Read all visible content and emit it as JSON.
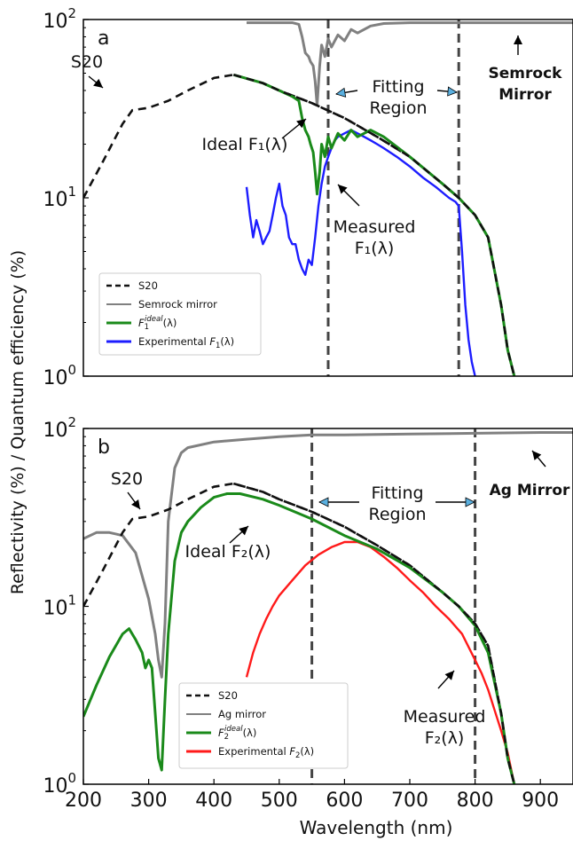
{
  "figure": {
    "ylabel": "Reflectivity (%) / Quantum efficiency (%)",
    "xlabel": "Wavelength (nm)"
  },
  "colors": {
    "s20": "#111111",
    "mirror": "#808080",
    "ideal": "#1a8a1a",
    "experimental_a": "#1d1dff",
    "experimental_b": "#ff1a1a",
    "dashed_lines": "#444444"
  },
  "chart_data": [
    {
      "type": "line",
      "panel_label": "a",
      "x_scale": "linear",
      "y_scale": "log",
      "xlim": [
        200,
        950
      ],
      "ylim": [
        1,
        100
      ],
      "x_ticks": [],
      "y_ticks": [
        {
          "value": 1,
          "base": "10",
          "exp": "0"
        },
        {
          "value": 10,
          "base": "10",
          "exp": "1"
        },
        {
          "value": 100,
          "base": "10",
          "exp": "2"
        }
      ],
      "vlines": [
        575,
        775
      ],
      "legend": {
        "position": "lower-left",
        "entries": [
          {
            "series": "S20",
            "text": "S20"
          },
          {
            "series": "Semrock mirror",
            "text": "Semrock mirror"
          },
          {
            "series": "F1 ideal",
            "text": "F",
            "sub": "1",
            "sup": "ideal",
            "tail": "(λ)"
          },
          {
            "series": "Experimental F1",
            "text": "Experimental F",
            "sub": "1",
            "tail": "(λ)"
          }
        ]
      },
      "annotations": [
        {
          "lines": [
            "S20"
          ]
        },
        {
          "lines": [
            "Semrock",
            "Mirror"
          ],
          "bold": true
        },
        {
          "lines": [
            "Fitting",
            "Region"
          ]
        },
        {
          "lines": [
            "Ideal F₁(λ)"
          ]
        },
        {
          "lines": [
            "Measured",
            "F₁(λ)"
          ]
        }
      ],
      "series": [
        {
          "name": "S20",
          "style": "dashed",
          "x": [
            200,
            230,
            260,
            275,
            300,
            330,
            360,
            400,
            430,
            475,
            500,
            550,
            600,
            650,
            700,
            750,
            775,
            800,
            820,
            840,
            850,
            860
          ],
          "y": [
            10,
            16,
            26,
            31,
            32,
            35,
            40,
            47,
            49,
            44,
            40,
            34,
            28,
            22,
            17,
            12,
            10,
            8,
            6,
            2.5,
            1.4,
            1.0
          ]
        },
        {
          "name": "Semrock mirror",
          "x": [
            450,
            480,
            520,
            530,
            535,
            540,
            545,
            548,
            552,
            555,
            558,
            562,
            565,
            570,
            575,
            580,
            590,
            600,
            610,
            620,
            640,
            660,
            700,
            800,
            900,
            950
          ],
          "y": [
            96,
            96,
            96,
            94,
            80,
            65,
            62,
            58,
            55,
            45,
            33,
            55,
            72,
            62,
            78,
            70,
            82,
            76,
            88,
            84,
            92,
            95,
            96,
            96,
            96,
            96
          ]
        },
        {
          "name": "F1 ideal",
          "x": [
            430,
            475,
            500,
            520,
            530,
            535,
            540,
            545,
            548,
            552,
            555,
            558,
            562,
            565,
            570,
            575,
            580,
            590,
            600,
            610,
            620,
            640,
            660,
            700,
            750,
            775,
            800,
            820,
            840,
            850,
            860
          ],
          "y": [
            49,
            44,
            40,
            37,
            35,
            28,
            24,
            22,
            20,
            18,
            14,
            10.5,
            14,
            20,
            17,
            22,
            19,
            23,
            21,
            24,
            22,
            24,
            22,
            17,
            12,
            10,
            8,
            6,
            2.5,
            1.4,
            1.0
          ]
        },
        {
          "name": "Experimental F1",
          "x": [
            450,
            455,
            460,
            465,
            470,
            475,
            480,
            485,
            490,
            495,
            500,
            505,
            510,
            515,
            520,
            525,
            530,
            535,
            540,
            545,
            550,
            555,
            560,
            565,
            570,
            575,
            580,
            585,
            590,
            600,
            610,
            620,
            630,
            640,
            650,
            660,
            680,
            700,
            720,
            740,
            760,
            770,
            775,
            780,
            785,
            790,
            795,
            800
          ],
          "y": [
            11.5,
            8,
            6,
            7.5,
            6.5,
            5.5,
            6,
            6.5,
            8,
            10,
            12,
            9,
            8,
            6,
            5.5,
            5.5,
            4.5,
            4,
            3.7,
            4.5,
            4.2,
            6,
            9,
            12,
            15,
            17,
            19,
            21,
            22,
            23,
            24,
            23,
            22,
            21,
            20,
            19,
            17,
            15,
            13,
            11.5,
            10,
            9.5,
            9,
            5,
            2.5,
            1.6,
            1.2,
            1.0
          ]
        }
      ]
    },
    {
      "type": "line",
      "panel_label": "b",
      "x_scale": "linear",
      "y_scale": "log",
      "xlim": [
        200,
        950
      ],
      "ylim": [
        1,
        100
      ],
      "x_ticks": [
        200,
        300,
        400,
        500,
        600,
        700,
        800,
        900
      ],
      "y_ticks": [
        {
          "value": 1,
          "base": "10",
          "exp": "0"
        },
        {
          "value": 10,
          "base": "10",
          "exp": "1"
        },
        {
          "value": 100,
          "base": "10",
          "exp": "2"
        }
      ],
      "vlines": [
        550,
        800
      ],
      "legend": {
        "position": "lower-left",
        "entries": [
          {
            "series": "S20",
            "text": "S20"
          },
          {
            "series": "Ag mirror",
            "text": "Ag mirror"
          },
          {
            "series": "F2 ideal",
            "text": "F",
            "sub": "2",
            "sup": "ideal",
            "tail": "(λ)"
          },
          {
            "series": "Experimental F2",
            "text": "Experimental F",
            "sub": "2",
            "tail": "(λ)"
          }
        ]
      },
      "annotations": [
        {
          "lines": [
            "S20"
          ]
        },
        {
          "lines": [
            "Ag Mirror"
          ],
          "bold": true
        },
        {
          "lines": [
            "Fitting",
            "Region"
          ]
        },
        {
          "lines": [
            "Ideal F₂(λ)"
          ]
        },
        {
          "lines": [
            "Measured",
            "F₂(λ)"
          ]
        }
      ],
      "series": [
        {
          "name": "S20",
          "style": "dashed",
          "x": [
            200,
            230,
            260,
            275,
            300,
            330,
            360,
            400,
            430,
            475,
            500,
            550,
            600,
            650,
            700,
            750,
            775,
            800,
            820,
            840,
            850,
            860
          ],
          "y": [
            10,
            16,
            26,
            31,
            32,
            35,
            40,
            47,
            49,
            44,
            40,
            34,
            28,
            22,
            17,
            12,
            10,
            8,
            6,
            2.5,
            1.4,
            1.0
          ]
        },
        {
          "name": "Ag mirror",
          "x": [
            200,
            220,
            240,
            260,
            280,
            300,
            310,
            315,
            320,
            325,
            330,
            340,
            350,
            360,
            400,
            450,
            500,
            550,
            600,
            700,
            800,
            900,
            950
          ],
          "y": [
            24,
            26,
            26,
            25,
            20,
            11,
            7,
            5,
            4,
            8,
            30,
            60,
            73,
            78,
            84,
            87,
            90,
            92,
            92,
            93,
            94,
            95,
            95
          ]
        },
        {
          "name": "F2 ideal",
          "x": [
            200,
            220,
            240,
            260,
            270,
            280,
            290,
            295,
            300,
            305,
            310,
            315,
            320,
            325,
            330,
            340,
            350,
            360,
            380,
            400,
            420,
            440,
            475,
            500,
            550,
            600,
            650,
            700,
            750,
            775,
            800,
            820,
            840,
            850,
            860
          ],
          "y": [
            2.4,
            3.6,
            5.2,
            7,
            7.5,
            6.5,
            5.5,
            4.5,
            5,
            4.5,
            2.5,
            1.4,
            1.2,
            3,
            7,
            18,
            26,
            30,
            36,
            41,
            43,
            43,
            40,
            37,
            31,
            25,
            21,
            16.5,
            12,
            10,
            7.8,
            5.5,
            2.5,
            1.4,
            1.0
          ]
        },
        {
          "name": "Experimental F2",
          "x": [
            450,
            460,
            470,
            480,
            490,
            500,
            520,
            540,
            560,
            580,
            600,
            620,
            640,
            660,
            680,
            700,
            720,
            740,
            760,
            780,
            800,
            810,
            820,
            830,
            840,
            850,
            860
          ],
          "y": [
            4,
            5.5,
            7,
            8.5,
            10,
            11.5,
            14,
            17,
            19.5,
            21.5,
            23,
            23,
            21.5,
            19,
            16.5,
            14,
            12,
            10,
            8.5,
            7,
            5,
            4.2,
            3.4,
            2.6,
            2,
            1.5,
            1.0
          ]
        }
      ]
    }
  ]
}
